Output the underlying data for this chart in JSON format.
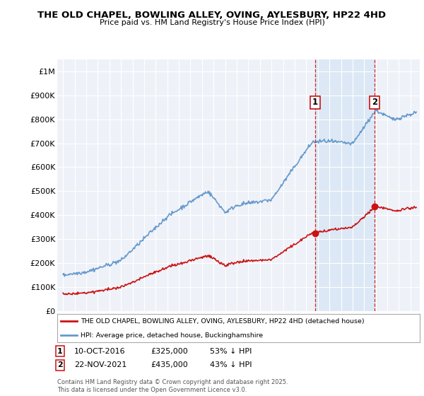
{
  "title": "THE OLD CHAPEL, BOWLING ALLEY, OVING, AYLESBURY, HP22 4HD",
  "subtitle": "Price paid vs. HM Land Registry's House Price Index (HPI)",
  "hpi_label": "HPI: Average price, detached house, Buckinghamshire",
  "property_label": "THE OLD CHAPEL, BOWLING ALLEY, OVING, AYLESBURY, HP22 4HD (detached house)",
  "hpi_color": "#6699cc",
  "property_color": "#cc1111",
  "shade_color": "#dce8f5",
  "marker1_date_x": 2016.78,
  "marker1_price": 325000,
  "marker1_label": "10-OCT-2016",
  "marker1_pct": "53% ↓ HPI",
  "marker2_date_x": 2021.9,
  "marker2_price": 435000,
  "marker2_label": "22-NOV-2021",
  "marker2_pct": "43% ↓ HPI",
  "ylim_max": 1050000,
  "xlim_start": 1994.5,
  "xlim_end": 2025.8,
  "footer": "Contains HM Land Registry data © Crown copyright and database right 2025.\nThis data is licensed under the Open Government Licence v3.0.",
  "yticks": [
    0,
    100000,
    200000,
    300000,
    400000,
    500000,
    600000,
    700000,
    800000,
    900000,
    1000000
  ],
  "ytick_labels": [
    "£0",
    "£100K",
    "£200K",
    "£300K",
    "£400K",
    "£500K",
    "£600K",
    "£700K",
    "£800K",
    "£900K",
    "£1M"
  ]
}
